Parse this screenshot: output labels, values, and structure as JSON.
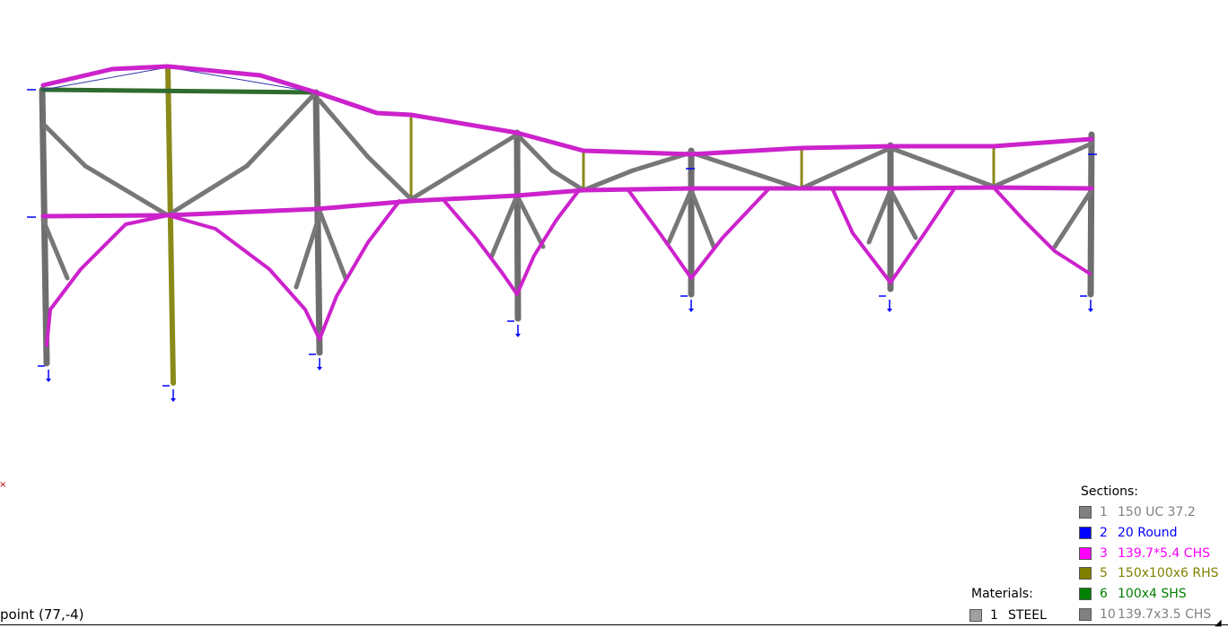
{
  "status": {
    "coords": "point (77,-4)"
  },
  "legends": {
    "sections": {
      "title": "Sections:",
      "items": [
        {
          "id": "1",
          "name": "150 UC 37.2",
          "color": "#808080"
        },
        {
          "id": "2",
          "name": "20 Round",
          "color": "#0000ff"
        },
        {
          "id": "3",
          "name": "139.7*5.4 CHS",
          "color": "#ff00ff"
        },
        {
          "id": "5",
          "name": "150x100x6 RHS",
          "color": "#808000"
        },
        {
          "id": "6",
          "name": "100x4 SHS",
          "color": "#008000"
        },
        {
          "id": "10",
          "name": "139.7x3.5 CHS",
          "color": "#808080"
        }
      ]
    },
    "materials": {
      "title": "Materials:",
      "items": [
        {
          "id": "1",
          "name": "STEEL",
          "color": "#a0a0a0"
        }
      ]
    }
  },
  "model": {
    "member_colors": {
      "column": "#6e6e6e",
      "brace": "#777777",
      "chord": "#cc22cc",
      "post": "#8a8a1a",
      "tie": "#2f6b2f",
      "support": "#0000ff"
    }
  }
}
